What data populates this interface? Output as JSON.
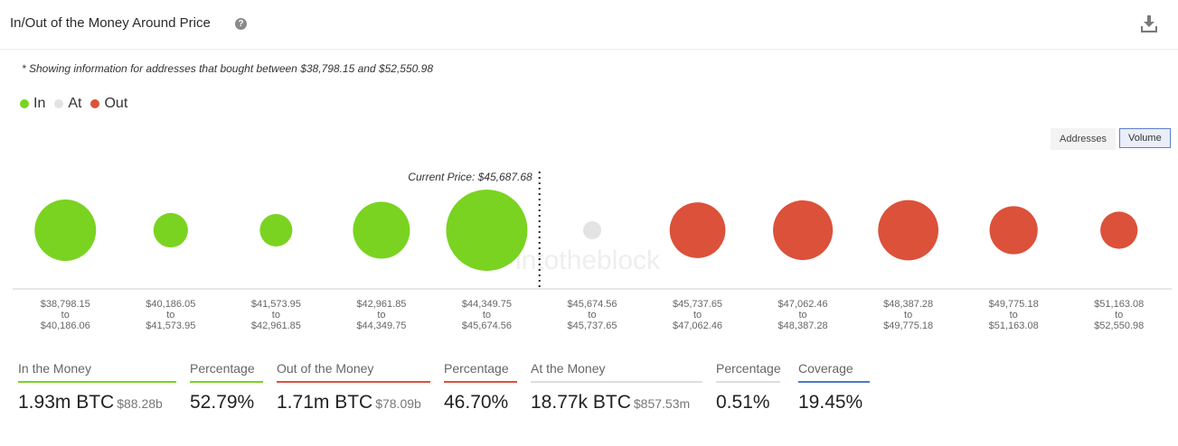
{
  "header": {
    "title": "In/Out of the Money Around Price",
    "help_glyph": "?"
  },
  "note": "* Showing information for addresses that bought between $38,798.15 and $52,550.98",
  "legend": [
    {
      "label": "In",
      "color": "#7ad321"
    },
    {
      "label": "At",
      "color": "#e3e3e3"
    },
    {
      "label": "Out",
      "color": "#dc513a"
    }
  ],
  "toggles": {
    "addresses": "Addresses",
    "volume": "Volume"
  },
  "watermark": "intotheblock",
  "chart_data": {
    "type": "scatter",
    "encoding": "bubble size = volume",
    "current_price_label": "Current Price: $45,687.68",
    "current_price_after_index": 4,
    "colors": {
      "In": "#7ad321",
      "At": "#e3e3e3",
      "Out": "#dc513a"
    },
    "bins": [
      {
        "from": "$38,798.15",
        "to_word": "to",
        "to": "$40,186.06",
        "status": "In",
        "relative_volume": 0.57
      },
      {
        "from": "$40,186.05",
        "to_word": "to",
        "to": "$41,573.95",
        "status": "In",
        "relative_volume": 0.18
      },
      {
        "from": "$41,573.95",
        "to_word": "to",
        "to": "$42,961.85",
        "status": "In",
        "relative_volume": 0.16
      },
      {
        "from": "$42,961.85",
        "to_word": "to",
        "to": "$44,349.75",
        "status": "In",
        "relative_volume": 0.49
      },
      {
        "from": "$44,349.75",
        "to_word": "to",
        "to": "$45,674.56",
        "status": "In",
        "relative_volume": 1.0
      },
      {
        "from": "$45,674.56",
        "to_word": "to",
        "to": "$45,737.65",
        "status": "At",
        "relative_volume": 0.03
      },
      {
        "from": "$45,737.65",
        "to_word": "to",
        "to": "$47,062.46",
        "status": "Out",
        "relative_volume": 0.47
      },
      {
        "from": "$47,062.46",
        "to_word": "to",
        "to": "$48,387.28",
        "status": "Out",
        "relative_volume": 0.54
      },
      {
        "from": "$48,387.28",
        "to_word": "to",
        "to": "$49,775.18",
        "status": "Out",
        "relative_volume": 0.55
      },
      {
        "from": "$49,775.18",
        "to_word": "to",
        "to": "$51,163.08",
        "status": "Out",
        "relative_volume": 0.35
      },
      {
        "from": "$51,163.08",
        "to_word": "to",
        "to": "$52,550.98",
        "status": "Out",
        "relative_volume": 0.21
      }
    ]
  },
  "stats": [
    {
      "label": "In the Money",
      "value": "1.93m BTC",
      "sub": "$88.28b",
      "color": "#7ad321"
    },
    {
      "label": "Percentage",
      "value": "52.79%",
      "sub": "",
      "color": "#7ad321"
    },
    {
      "label": "Out of the Money",
      "value": "1.71m BTC",
      "sub": "$78.09b",
      "color": "#dc513a"
    },
    {
      "label": "Percentage",
      "value": "46.70%",
      "sub": "",
      "color": "#dc513a"
    },
    {
      "label": "At the Money",
      "value": "18.77k BTC",
      "sub": "$857.53m",
      "color": "#dedede"
    },
    {
      "label": "Percentage",
      "value": "0.51%",
      "sub": "",
      "color": "#dedede"
    },
    {
      "label": "Coverage",
      "value": "19.45%",
      "sub": "",
      "color": "#4a78d4"
    }
  ]
}
